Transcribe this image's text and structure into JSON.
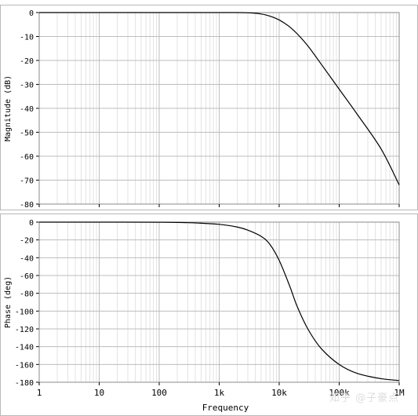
{
  "chart_data": [
    {
      "type": "line",
      "ylabel": "Magnitude (dB)",
      "xlabel": "",
      "x_scale": "log",
      "xlim": [
        1,
        1000000
      ],
      "ylim": [
        -80,
        0
      ],
      "yticks": [
        0,
        -10,
        -20,
        -30,
        -40,
        -50,
        -60,
        -70,
        -80
      ],
      "ytick_labels": [
        "0",
        "-10",
        "-20",
        "-30",
        "-40",
        "-50",
        "-60",
        "-70",
        "-80"
      ],
      "grid": true,
      "series": [
        {
          "color": "#000000",
          "x": [
            1,
            10,
            100,
            1000,
            2000,
            3000,
            4000,
            5000,
            6000,
            7000,
            8000,
            10000,
            12000,
            15000,
            20000,
            30000,
            50000,
            100000,
            200000,
            500000,
            1000000
          ],
          "values": [
            0,
            0,
            0,
            0,
            0,
            -0.1,
            -0.3,
            -0.6,
            -1.0,
            -1.5,
            -2.0,
            -3.1,
            -4.3,
            -6.0,
            -8.9,
            -13.9,
            -21.5,
            -32.0,
            -42.5,
            -57.0,
            -72.0
          ]
        }
      ]
    },
    {
      "type": "line",
      "ylabel": "Phase (deg)",
      "xlabel": "Frequency",
      "x_scale": "log",
      "xlim": [
        1,
        1000000
      ],
      "ylim": [
        -180,
        0
      ],
      "xticks": [
        1,
        10,
        100,
        1000,
        10000,
        100000,
        1000000
      ],
      "xtick_labels": [
        "1",
        "10",
        "100",
        "1k",
        "10k",
        "100k",
        "1M"
      ],
      "yticks": [
        0,
        -20,
        -40,
        -60,
        -80,
        -100,
        -120,
        -140,
        -160,
        -180
      ],
      "ytick_labels": [
        "0",
        "-20",
        "-40",
        "-60",
        "-80",
        "-100",
        "-120",
        "-140",
        "-160",
        "-180"
      ],
      "grid": true,
      "series": [
        {
          "color": "#000000",
          "x": [
            1,
            10,
            100,
            300,
            1000,
            2000,
            3000,
            5000,
            7000,
            10000,
            15000,
            20000,
            30000,
            50000,
            100000,
            200000,
            500000,
            1000000
          ],
          "values": [
            0,
            0,
            -0.1,
            -0.6,
            -2.5,
            -5.5,
            -9,
            -16,
            -25,
            -43,
            -72,
            -95,
            -120,
            -142,
            -160,
            -170,
            -176,
            -178
          ]
        }
      ]
    }
  ],
  "watermark": "知乎 @子豪点"
}
